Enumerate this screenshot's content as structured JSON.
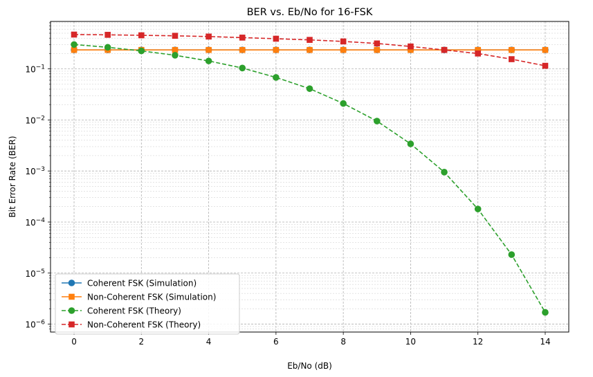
{
  "chart_data": {
    "type": "line",
    "title": "BER vs. Eb/No for 16-FSK",
    "xlabel": "Eb/No (dB)",
    "ylabel": "Bit Error Rate (BER)",
    "xlim": [
      -0.7,
      14.7
    ],
    "ylim": [
      7e-07,
      0.85
    ],
    "yscale": "log",
    "grid": true,
    "legend_position": "lower-left",
    "x": [
      0,
      1,
      2,
      3,
      4,
      5,
      6,
      7,
      8,
      9,
      10,
      11,
      12,
      13,
      14
    ],
    "x_ticks": [
      0,
      2,
      4,
      6,
      8,
      10,
      12,
      14
    ],
    "x_tick_labels": [
      "0",
      "2",
      "4",
      "6",
      "8",
      "10",
      "12",
      "14"
    ],
    "y_ticks": [
      1e-06,
      1e-05,
      0.0001,
      0.001,
      0.01,
      0.1
    ],
    "y_tick_labels": [
      {
        "base": "10",
        "exp": "−6"
      },
      {
        "base": "10",
        "exp": "−5"
      },
      {
        "base": "10",
        "exp": "−4"
      },
      {
        "base": "10",
        "exp": "−3"
      },
      {
        "base": "10",
        "exp": "−2"
      },
      {
        "base": "10",
        "exp": "−1"
      }
    ],
    "series": [
      {
        "name": "Coherent FSK (Simulation)",
        "color": "#1f77b4",
        "marker": "circle",
        "linestyle": "solid",
        "values": [
          0.235,
          0.235,
          0.235,
          0.235,
          0.235,
          0.235,
          0.235,
          0.235,
          0.235,
          0.235,
          0.235,
          0.235,
          0.235,
          0.235,
          0.235
        ]
      },
      {
        "name": "Non-Coherent FSK (Simulation)",
        "color": "#ff7f0e",
        "marker": "square",
        "linestyle": "solid",
        "values": [
          0.235,
          0.235,
          0.235,
          0.235,
          0.235,
          0.235,
          0.235,
          0.235,
          0.235,
          0.235,
          0.235,
          0.235,
          0.235,
          0.235,
          0.235
        ]
      },
      {
        "name": "Coherent FSK (Theory)",
        "color": "#2ca02c",
        "marker": "circle",
        "linestyle": "dashed",
        "values": [
          0.3,
          0.265,
          0.225,
          0.185,
          0.143,
          0.104,
          0.068,
          0.041,
          0.021,
          0.0095,
          0.0034,
          0.00095,
          0.00018,
          2.3e-05,
          1.7e-06
        ]
      },
      {
        "name": "Non-Coherent FSK (Theory)",
        "color": "#d62728",
        "marker": "square",
        "linestyle": "dashed",
        "values": [
          0.47,
          0.465,
          0.455,
          0.445,
          0.43,
          0.41,
          0.39,
          0.37,
          0.345,
          0.315,
          0.275,
          0.235,
          0.2,
          0.155,
          0.115
        ]
      }
    ]
  }
}
